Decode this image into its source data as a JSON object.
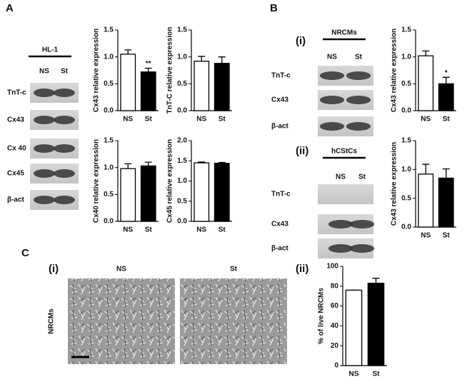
{
  "figure": {
    "panel_labels": {
      "a": "A",
      "b": "B",
      "c": "C"
    },
    "hl1": {
      "title": "HL-1",
      "columns": [
        "NS",
        "St"
      ],
      "rows": [
        "TnT-c",
        "Cx43",
        "Cx 40",
        "Cx45",
        "β-act"
      ]
    },
    "nrcms_blot": {
      "label": "(i)",
      "title": "NRCMs",
      "columns": [
        "NS",
        "St"
      ],
      "rows": [
        "TnT-c",
        "Cx43",
        "β-act"
      ]
    },
    "hcstcs_blot": {
      "label": "(ii)",
      "title": "hCStCs",
      "columns": [
        "NS",
        "St"
      ],
      "rows": [
        "TnT-c",
        "Cx43",
        "β-act"
      ]
    },
    "micrographs": {
      "label": "(i)",
      "row_label": "NRCMs",
      "columns": [
        "NS",
        "St"
      ]
    },
    "chart_label": "(ii)"
  },
  "chart_data": [
    {
      "type": "bar",
      "y_label": "Cx43 relative expression",
      "categories": [
        "NS",
        "St"
      ],
      "values": [
        1.05,
        0.72
      ],
      "errors": [
        0.08,
        0.07
      ],
      "annotations": [
        null,
        "**"
      ],
      "colors": [
        "#ffffff",
        "#000000"
      ],
      "ylim": [
        0,
        1.5
      ],
      "yticks": [
        {
          "value": 0,
          "label": "0.0"
        },
        0.5,
        {
          "value": 1,
          "label": "1.0"
        },
        1.5
      ]
    },
    {
      "type": "bar",
      "y_label": "TnT-C relative expression",
      "categories": [
        "NS",
        "St"
      ],
      "values": [
        0.92,
        0.88
      ],
      "errors": [
        0.09,
        0.12
      ],
      "colors": [
        "#ffffff",
        "#000000"
      ],
      "ylim": [
        0,
        1.5
      ],
      "yticks": [
        {
          "value": 0,
          "label": "0.0"
        },
        0.5,
        {
          "value": 1,
          "label": "1.0"
        },
        1.5
      ]
    },
    {
      "type": "bar",
      "y_label": "Cx40 relative expression",
      "categories": [
        "NS",
        "St"
      ],
      "values": [
        0.98,
        1.03
      ],
      "errors": [
        0.09,
        0.07
      ],
      "colors": [
        "#ffffff",
        "#000000"
      ],
      "ylim": [
        0,
        1.5
      ],
      "yticks": [
        {
          "value": 0,
          "label": "0.0"
        },
        0.5,
        {
          "value": 1,
          "label": "1.0"
        },
        1.5
      ]
    },
    {
      "type": "bar",
      "y_label": "Cx45 relative expression",
      "categories": [
        "NS",
        "St"
      ],
      "values": [
        1.45,
        1.44
      ],
      "errors": [
        0.02,
        0.02
      ],
      "colors": [
        "#ffffff",
        "#000000"
      ],
      "ylim": [
        0,
        2
      ],
      "yticks": [
        {
          "value": 0,
          "label": "0.0"
        },
        0.5,
        {
          "value": 1,
          "label": "1.0"
        },
        1.5,
        {
          "value": 2,
          "label": "2.0"
        }
      ]
    },
    {
      "type": "bar",
      "y_label": "Cx43 relative expression",
      "categories": [
        "NS",
        "St"
      ],
      "values": [
        1.02,
        0.5
      ],
      "errors": [
        0.09,
        0.12
      ],
      "annotations": [
        null,
        "*"
      ],
      "colors": [
        "#ffffff",
        "#000000"
      ],
      "ylim": [
        0,
        1.5
      ],
      "yticks": [
        {
          "value": 0,
          "label": "0.0"
        },
        0.5,
        {
          "value": 1,
          "label": "1.0"
        },
        1.5
      ]
    },
    {
      "type": "bar",
      "y_label": "Cx43 relative expression",
      "categories": [
        "NS",
        "St"
      ],
      "values": [
        0.92,
        0.85
      ],
      "errors": [
        0.17,
        0.16
      ],
      "colors": [
        "#ffffff",
        "#000000"
      ],
      "ylim": [
        0,
        1.5
      ],
      "yticks": [
        {
          "value": 0,
          "label": "0.0"
        },
        0.5,
        {
          "value": 1,
          "label": "1.0"
        },
        1.5
      ]
    },
    {
      "type": "bar",
      "y_label": "% of live NRCMs",
      "categories": [
        "NS",
        "St"
      ],
      "values": [
        76,
        83
      ],
      "errors": [
        0,
        5
      ],
      "colors": [
        "#ffffff",
        "#000000"
      ],
      "ylim": [
        0,
        100
      ],
      "yticks": [
        0,
        20,
        40,
        60,
        80,
        100
      ]
    }
  ]
}
